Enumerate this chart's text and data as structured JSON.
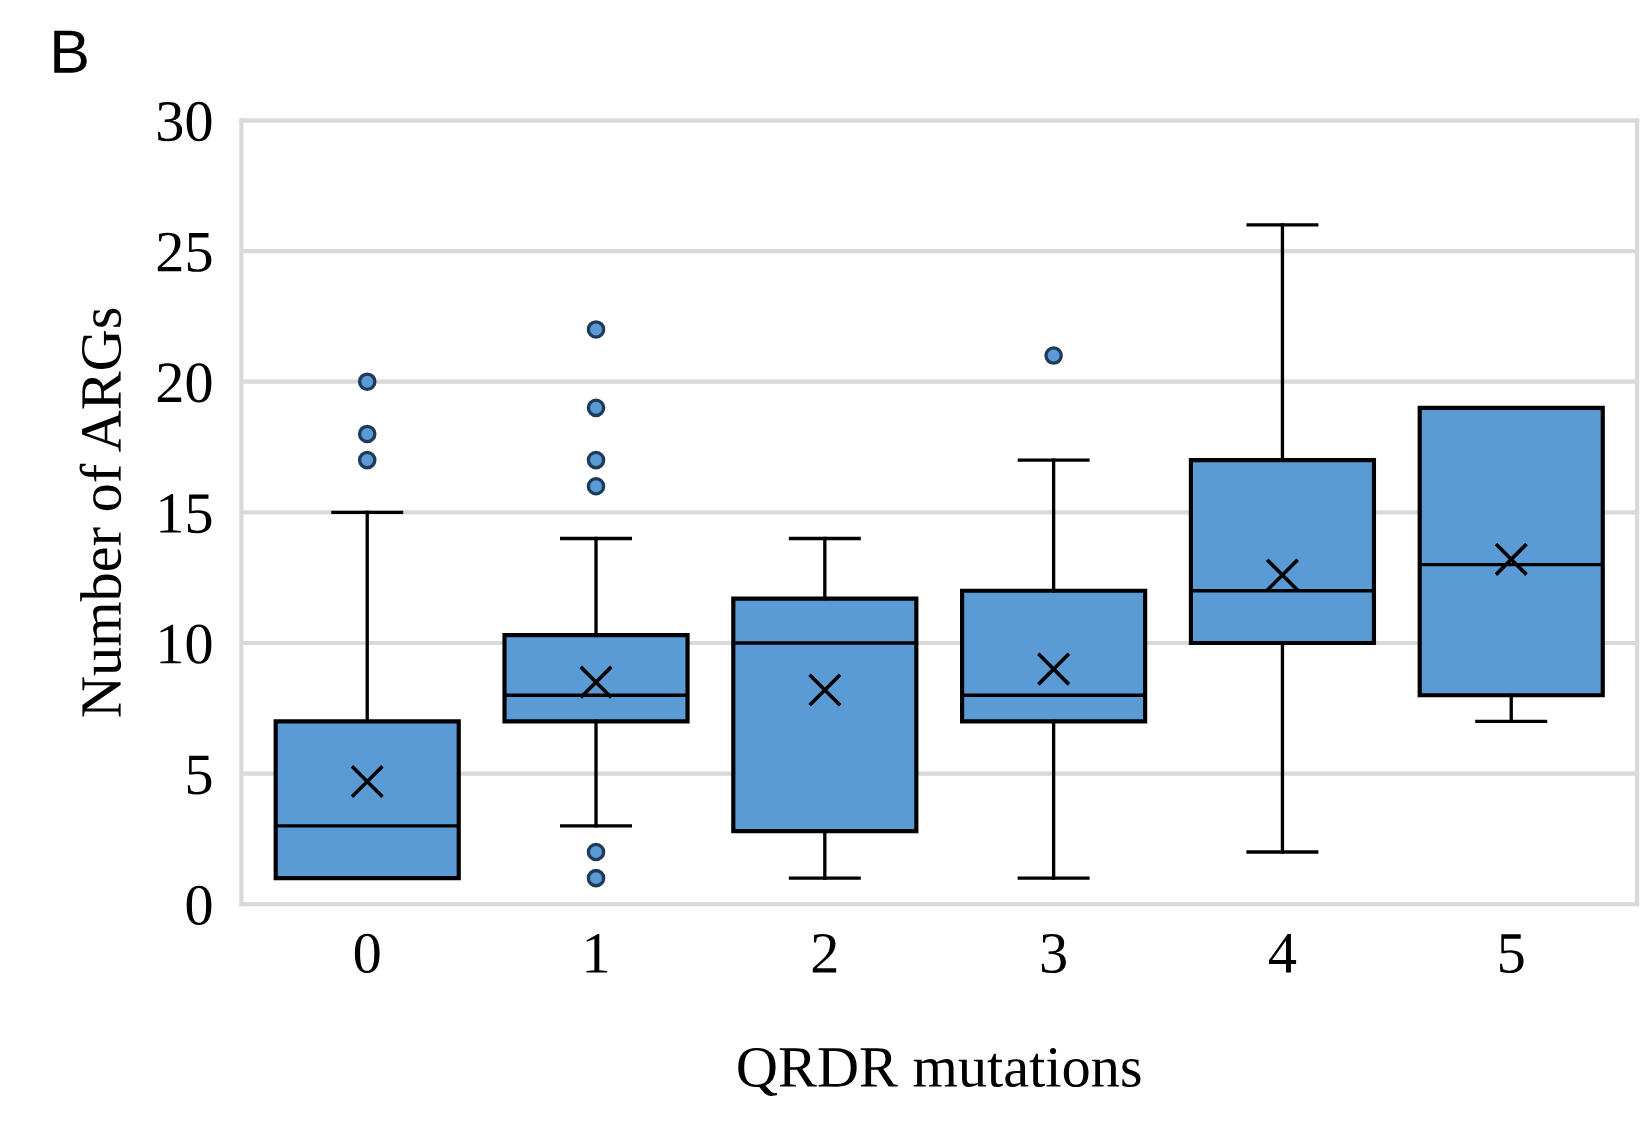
{
  "chart_data": {
    "type": "box",
    "xlabel": "QRDR mutations",
    "ylabel": "Number of ARGs",
    "annotations": [
      "B"
    ],
    "categories": [
      "0",
      "1",
      "2",
      "3",
      "4",
      "5"
    ],
    "color": "#5b9bd5",
    "boxes": [
      {
        "low": 1,
        "q1": 1,
        "median": 3,
        "q3": 7,
        "high": 15,
        "mean": 4.7,
        "outliers": [
          17,
          18,
          20
        ]
      },
      {
        "low": 3,
        "q1": 7,
        "median": 8,
        "q3": 10.3,
        "high": 14,
        "mean": 8.5,
        "outliers": [
          22,
          19,
          17,
          16,
          2,
          1
        ]
      },
      {
        "low": 1,
        "q1": 2.8,
        "median": 10,
        "q3": 11.7,
        "high": 14,
        "mean": 8.2
      },
      {
        "low": 1,
        "q1": 7,
        "median": 8,
        "q3": 12,
        "high": 17,
        "mean": 9,
        "outliers": [
          21
        ]
      },
      {
        "low": 2,
        "q1": 10,
        "median": 12,
        "q3": 17,
        "high": 26,
        "mean": 12.6
      },
      {
        "low": 7,
        "q1": 8,
        "median": 13,
        "q3": 19,
        "high": 19,
        "mean": 13.2
      }
    ],
    "ylim": [
      0,
      30
    ],
    "yticks": [
      0,
      5,
      10,
      15,
      20,
      25,
      30
    ],
    "grid": "y",
    "marker": "cross"
  }
}
